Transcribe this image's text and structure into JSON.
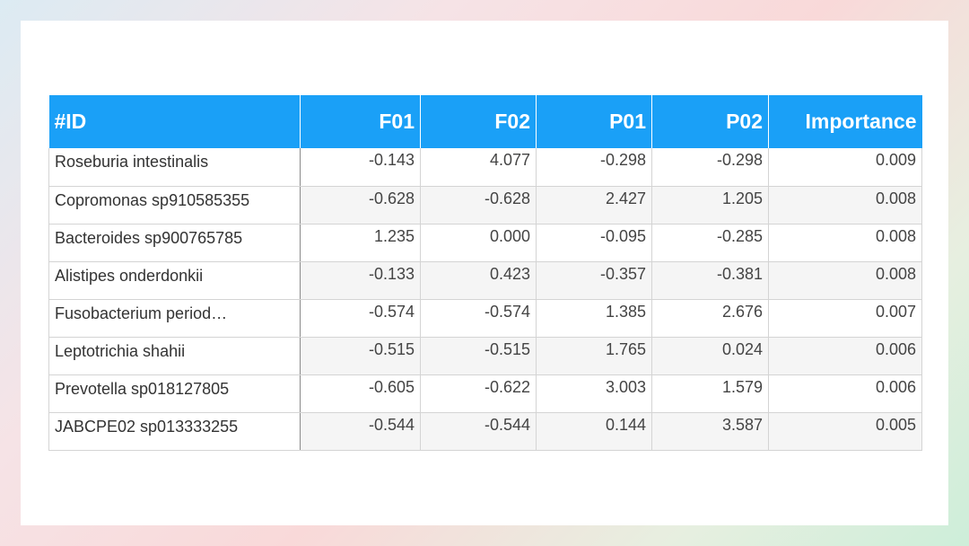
{
  "table": {
    "headers": [
      "#ID",
      "F01",
      "F02",
      "P01",
      "P02",
      "Importance"
    ],
    "rows": [
      [
        "Roseburia intestinalis",
        "-0.143",
        "4.077",
        "-0.298",
        "-0.298",
        "0.009"
      ],
      [
        "Copromonas sp910585355",
        "-0.628",
        "-0.628",
        "2.427",
        "1.205",
        "0.008"
      ],
      [
        "Bacteroides sp900765785",
        "1.235",
        "0.000",
        "-0.095",
        "-0.285",
        "0.008"
      ],
      [
        "Alistipes onderdonkii",
        "-0.133",
        "0.423",
        "-0.357",
        "-0.381",
        "0.008"
      ],
      [
        "Fusobacterium period…",
        "-0.574",
        "-0.574",
        "1.385",
        "2.676",
        "0.007"
      ],
      [
        "Leptotrichia shahii",
        "-0.515",
        "-0.515",
        "1.765",
        "0.024",
        "0.006"
      ],
      [
        "Prevotella sp018127805",
        "-0.605",
        "-0.622",
        "3.003",
        "1.579",
        "0.006"
      ],
      [
        "JABCPE02 sp013333255",
        "-0.544",
        "-0.544",
        "0.144",
        "3.587",
        "0.005"
      ]
    ]
  },
  "colors": {
    "header_bg": "#1aa0f7",
    "header_text": "#ffffff",
    "alt_row_bg": "#f5f5f5"
  }
}
